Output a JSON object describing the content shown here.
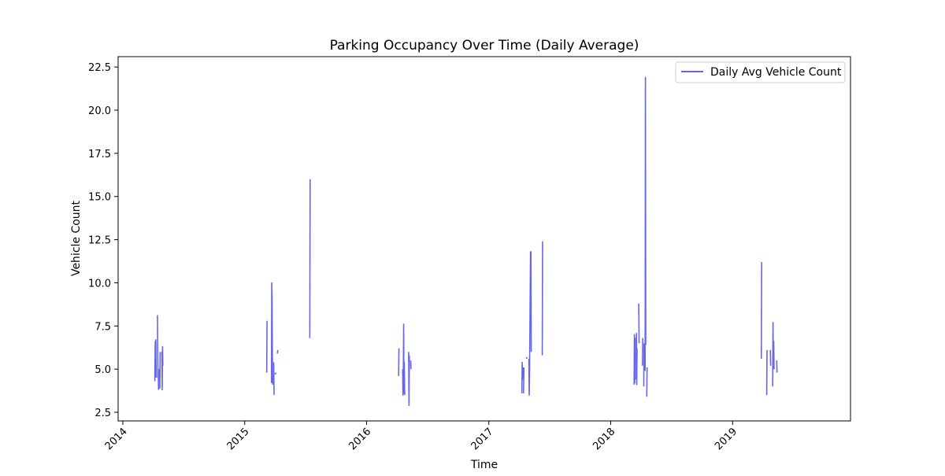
{
  "chart_data": {
    "type": "line",
    "title": "Parking Occupancy Over Time (Daily Average)",
    "xlabel": "Time",
    "ylabel": "Vehicle Count",
    "xlim": [
      "2013-12-18",
      "2019-12-20"
    ],
    "ylim": [
      2.0,
      23.1
    ],
    "x_ticks": [
      "2014",
      "2015",
      "2016",
      "2017",
      "2018",
      "2019"
    ],
    "y_ticks": [
      "2.5",
      "5.0",
      "7.5",
      "10.0",
      "12.5",
      "15.0",
      "17.5",
      "20.0",
      "22.5"
    ],
    "grid": false,
    "legend_position": "top-right",
    "series": [
      {
        "name": "Daily Avg Vehicle Count",
        "color": "#6666e8",
        "segments": [
          [
            [
              "2014-04-07",
              4.3
            ],
            [
              "2014-04-08",
              6.6
            ],
            [
              "2014-04-09",
              4.6
            ],
            [
              "2014-04-10",
              6.7
            ],
            [
              "2014-04-11",
              4.5
            ]
          ],
          [
            [
              "2014-04-14",
              8.1
            ],
            [
              "2014-04-15",
              8.1
            ],
            [
              "2014-04-16",
              4.5
            ],
            [
              "2014-04-17",
              5.0
            ],
            [
              "2014-04-18",
              3.8
            ]
          ],
          [
            [
              "2014-04-21",
              5.0
            ],
            [
              "2014-04-22",
              3.9
            ],
            [
              "2014-04-23",
              6.0
            ]
          ],
          [
            [
              "2014-04-28",
              6.0
            ],
            [
              "2014-04-29",
              3.8
            ],
            [
              "2014-04-30",
              6.3
            ],
            [
              "2014-05-01",
              5.2
            ]
          ],
          [
            [
              "2015-03-08",
              4.8
            ],
            [
              "2015-03-09",
              7.8
            ]
          ],
          [
            [
              "2015-03-22",
              4.2
            ],
            [
              "2015-03-23",
              10.0
            ],
            [
              "2015-03-24",
              9.1
            ],
            [
              "2015-03-25",
              5.5
            ],
            [
              "2015-03-26",
              4.1
            ]
          ],
          [
            [
              "2015-03-29",
              5.4
            ],
            [
              "2015-03-30",
              3.5
            ]
          ],
          [
            [
              "2015-04-02",
              4.7
            ],
            [
              "2015-04-05",
              4.8
            ]
          ],
          [
            [
              "2015-04-09",
              5.9
            ],
            [
              "2015-04-10",
              6.1
            ]
          ],
          [
            [
              "2015-07-15",
              6.8
            ],
            [
              "2015-07-16",
              16.0
            ]
          ],
          [
            [
              "2016-04-06",
              4.6
            ],
            [
              "2016-04-07",
              6.2
            ]
          ],
          [
            [
              "2016-04-18",
              5.0
            ],
            [
              "2016-04-19",
              3.5
            ],
            [
              "2016-04-20",
              4.9
            ],
            [
              "2016-04-21",
              7.6
            ],
            [
              "2016-04-22",
              3.6
            ],
            [
              "2016-04-23",
              5.4
            ],
            [
              "2016-04-24",
              3.5
            ]
          ],
          [
            [
              "2016-05-06",
              6.0
            ],
            [
              "2016-05-07",
              2.9
            ],
            [
              "2016-05-08",
              5.8
            ]
          ],
          [
            [
              "2016-05-12",
              5.5
            ],
            [
              "2016-05-13",
              5.0
            ]
          ],
          [
            [
              "2017-04-10",
              3.6
            ],
            [
              "2017-04-11",
              5.4
            ],
            [
              "2017-04-12",
              4.4
            ],
            [
              "2017-04-13",
              5.1
            ]
          ],
          [
            [
              "2017-04-15",
              3.6
            ],
            [
              "2017-04-16",
              5.1
            ]
          ],
          [
            [
              "2017-04-24",
              5.7
            ],
            [
              "2017-04-25",
              5.6
            ]
          ],
          [
            [
              "2017-05-01",
              5.6
            ],
            [
              "2017-05-02",
              3.5
            ],
            [
              "2017-05-03",
              5.0
            ],
            [
              "2017-05-06",
              11.8
            ],
            [
              "2017-05-07",
              11.8
            ],
            [
              "2017-05-08",
              6.0
            ]
          ],
          [
            [
              "2017-06-10",
              5.8
            ],
            [
              "2017-06-11",
              12.4
            ]
          ],
          [
            [
              "2018-03-12",
              4.1
            ],
            [
              "2018-03-13",
              7.0
            ],
            [
              "2018-03-14",
              4.2
            ],
            [
              "2018-03-15",
              6.8
            ],
            [
              "2018-03-16",
              4.4
            ]
          ],
          [
            [
              "2018-03-19",
              7.1
            ],
            [
              "2018-03-20",
              4.1
            ],
            [
              "2018-03-21",
              6.2
            ]
          ],
          [
            [
              "2018-03-26",
              8.8
            ],
            [
              "2018-03-27",
              6.5
            ]
          ],
          [
            [
              "2018-04-06",
              5.2
            ],
            [
              "2018-04-07",
              6.8
            ]
          ],
          [
            [
              "2018-04-10",
              4.0
            ],
            [
              "2018-04-11",
              6.5
            ]
          ],
          [
            [
              "2018-04-14",
              4.9
            ],
            [
              "2018-04-15",
              21.9
            ],
            [
              "2018-04-16",
              6.4
            ]
          ],
          [
            [
              "2018-04-19",
              3.4
            ],
            [
              "2018-04-20",
              5.1
            ]
          ],
          [
            [
              "2019-03-28",
              5.6
            ],
            [
              "2019-03-29",
              11.2
            ]
          ],
          [
            [
              "2019-04-13",
              3.5
            ],
            [
              "2019-04-14",
              6.1
            ]
          ],
          [
            [
              "2019-04-24",
              6.1
            ],
            [
              "2019-04-25",
              5.2
            ]
          ],
          [
            [
              "2019-05-01",
              4.0
            ],
            [
              "2019-05-02",
              7.7
            ],
            [
              "2019-05-03",
              5.2
            ],
            [
              "2019-05-04",
              6.6
            ],
            [
              "2019-05-05",
              5.0
            ]
          ],
          [
            [
              "2019-05-13",
              5.5
            ],
            [
              "2019-05-14",
              4.8
            ]
          ]
        ]
      }
    ]
  }
}
